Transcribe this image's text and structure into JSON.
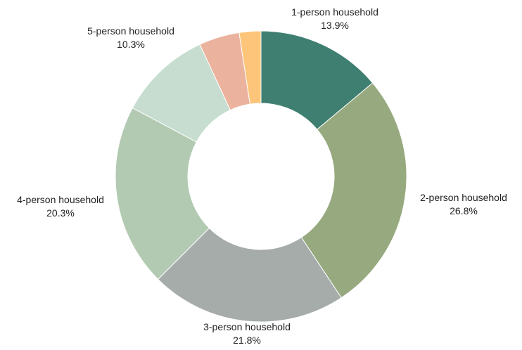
{
  "chart_data": {
    "type": "pie",
    "donut": true,
    "legend": "none",
    "slices": [
      {
        "label": "1-person household",
        "value": 13.9,
        "display": "13.9%",
        "color": "#3f7f71",
        "show_label": true
      },
      {
        "label": "2-person household",
        "value": 26.8,
        "display": "26.8%",
        "color": "#97a97f",
        "show_label": true
      },
      {
        "label": "3-person household",
        "value": 21.8,
        "display": "21.8%",
        "color": "#a5acaa",
        "show_label": true
      },
      {
        "label": "4-person household",
        "value": 20.3,
        "display": "20.3%",
        "color": "#b2cab1",
        "show_label": true
      },
      {
        "label": "5-person household",
        "value": 10.3,
        "display": "10.3%",
        "color": "#c6ddd0",
        "show_label": true
      },
      {
        "value": 4.5,
        "color": "#ebb39d",
        "show_label": false
      },
      {
        "value": 2.4,
        "color": "#fdc57a",
        "show_label": false
      }
    ]
  }
}
